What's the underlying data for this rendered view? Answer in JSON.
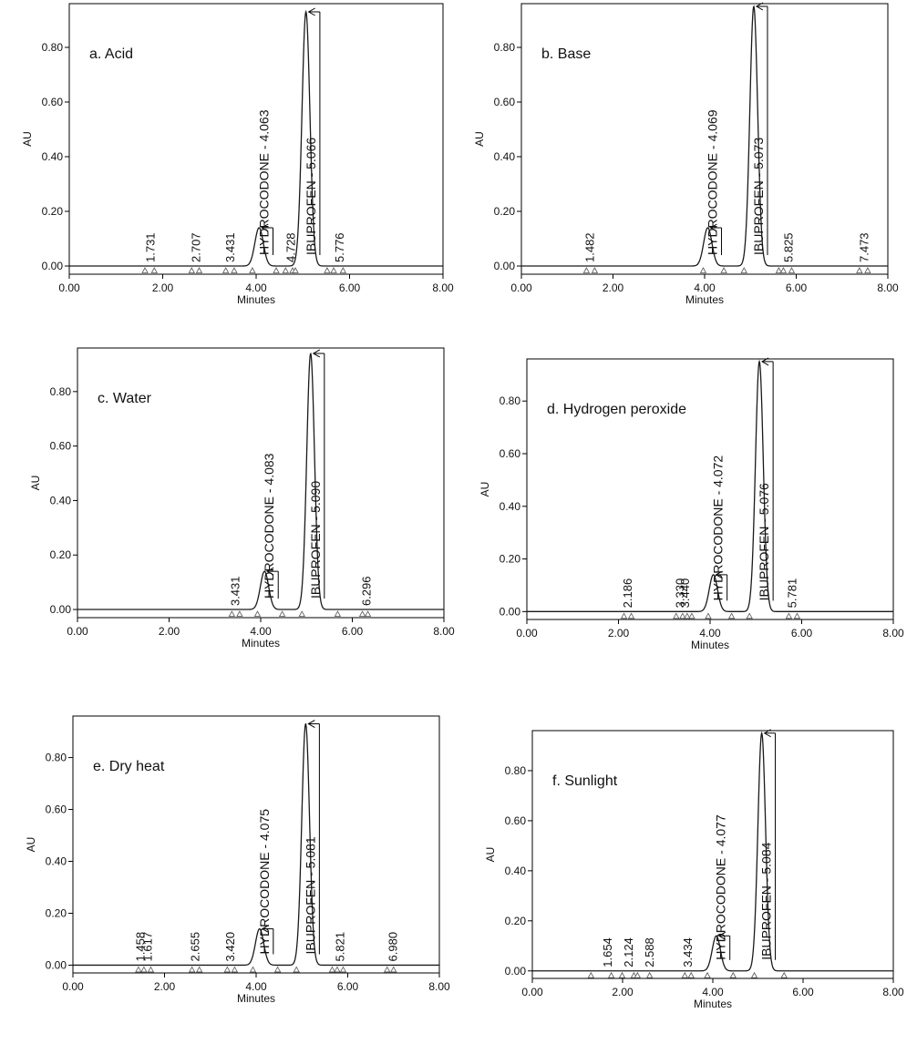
{
  "figure": {
    "description_title": ""
  },
  "colors": {
    "axis": "#000000",
    "trace": "#1a1a1a",
    "text": "#111111"
  },
  "chart_data": [
    {
      "type": "line",
      "title": "a. Acid",
      "xlabel": "Minutes",
      "ylabel": "AU",
      "xlim": [
        0,
        8
      ],
      "ylim": [
        -0.03,
        0.96
      ],
      "xticks": [
        "0.00",
        "2.00",
        "4.00",
        "6.00",
        "8.00"
      ],
      "yticks": [
        "0.00",
        "0.20",
        "0.40",
        "0.60",
        "0.80"
      ],
      "peaks": [
        {
          "rt": 4.063,
          "height": 0.14,
          "width": 0.09
        },
        {
          "rt": 5.066,
          "height": 0.93,
          "width": 0.085
        }
      ],
      "labels": [
        {
          "x": 1.731,
          "text": "1.731"
        },
        {
          "x": 2.707,
          "text": "2.707"
        },
        {
          "x": 3.431,
          "text": "3.431"
        },
        {
          "x": 4.063,
          "text": "HYDROCODONE - 4.063",
          "peak": true
        },
        {
          "x": 4.728,
          "text": "4.728"
        },
        {
          "x": 5.066,
          "text": "IBUPROFEN - 5.066",
          "peak": true
        },
        {
          "x": 5.776,
          "text": "5.776"
        }
      ],
      "markers": [
        1.62,
        1.82,
        2.62,
        2.78,
        3.35,
        3.53,
        3.92,
        4.43,
        4.63,
        4.78,
        4.84,
        5.52,
        5.66,
        5.86
      ]
    },
    {
      "type": "line",
      "title": "b. Base",
      "xlabel": "Minutes",
      "ylabel": "AU",
      "xlim": [
        0,
        8
      ],
      "ylim": [
        -0.03,
        0.96
      ],
      "xticks": [
        "0.00",
        "2.00",
        "4.00",
        "6.00",
        "8.00"
      ],
      "yticks": [
        "0.00",
        "0.20",
        "0.40",
        "0.60",
        "0.80"
      ],
      "peaks": [
        {
          "rt": 4.069,
          "height": 0.14,
          "width": 0.09
        },
        {
          "rt": 5.073,
          "height": 0.95,
          "width": 0.085
        }
      ],
      "labels": [
        {
          "x": 1.482,
          "text": "1.482"
        },
        {
          "x": 4.069,
          "text": "HYDROCODONE - 4.069",
          "peak": true
        },
        {
          "x": 5.073,
          "text": "IBUPROFEN - 5.073",
          "peak": true
        },
        {
          "x": 5.825,
          "text": "5.825"
        },
        {
          "x": 7.473,
          "text": "7.473"
        }
      ],
      "markers": [
        1.42,
        1.6,
        3.97,
        4.42,
        4.86,
        5.62,
        5.72,
        5.9,
        7.38,
        7.56
      ]
    },
    {
      "type": "line",
      "title": "c. Water",
      "xlabel": "Minutes",
      "ylabel": "AU",
      "xlim": [
        0,
        8
      ],
      "ylim": [
        -0.03,
        0.96
      ],
      "xticks": [
        "0.00",
        "2.00",
        "4.00",
        "6.00",
        "8.00"
      ],
      "yticks": [
        "0.00",
        "0.20",
        "0.40",
        "0.60",
        "0.80"
      ],
      "peaks": [
        {
          "rt": 4.083,
          "height": 0.14,
          "width": 0.09
        },
        {
          "rt": 5.09,
          "height": 0.94,
          "width": 0.085
        }
      ],
      "labels": [
        {
          "x": 3.431,
          "text": "3.431"
        },
        {
          "x": 4.083,
          "text": "HYDROCODONE - 4.083",
          "peak": true
        },
        {
          "x": 5.09,
          "text": "IBUPROFEN - 5.090",
          "peak": true
        },
        {
          "x": 6.296,
          "text": "6.296"
        }
      ],
      "markers": [
        3.37,
        3.54,
        3.93,
        4.47,
        4.9,
        5.68,
        6.22,
        6.34
      ]
    },
    {
      "type": "line",
      "title": "d. Hydrogen peroxide",
      "xlabel": "Minutes",
      "ylabel": "AU",
      "xlim": [
        0,
        8
      ],
      "ylim": [
        -0.03,
        0.96
      ],
      "xticks": [
        "0.00",
        "2.00",
        "4.00",
        "6.00",
        "8.00"
      ],
      "yticks": [
        "0.00",
        "0.20",
        "0.40",
        "0.60",
        "0.80"
      ],
      "peaks": [
        {
          "rt": 4.072,
          "height": 0.14,
          "width": 0.09
        },
        {
          "rt": 5.076,
          "height": 0.95,
          "width": 0.085
        }
      ],
      "labels": [
        {
          "x": 2.186,
          "text": "2.186"
        },
        {
          "x": 3.33,
          "text": "3.330"
        },
        {
          "x": 3.44,
          "text": "3.440"
        },
        {
          "x": 4.072,
          "text": "HYDROCODONE - 4.072",
          "peak": true
        },
        {
          "x": 5.076,
          "text": "IBUPROFEN - 5.076",
          "peak": true
        },
        {
          "x": 5.781,
          "text": "5.781"
        }
      ],
      "markers": [
        2.12,
        2.28,
        3.26,
        3.4,
        3.5,
        3.6,
        3.96,
        4.47,
        4.86,
        5.72,
        5.9
      ]
    },
    {
      "type": "line",
      "title": "e. Dry heat",
      "xlabel": "Minutes",
      "ylabel": "AU",
      "xlim": [
        0,
        8
      ],
      "ylim": [
        -0.03,
        0.96
      ],
      "xticks": [
        "0.00",
        "2.00",
        "4.00",
        "6.00",
        "8.00"
      ],
      "yticks": [
        "0.00",
        "0.20",
        "0.40",
        "0.60",
        "0.80"
      ],
      "peaks": [
        {
          "rt": 4.075,
          "height": 0.14,
          "width": 0.09
        },
        {
          "rt": 5.081,
          "height": 0.93,
          "width": 0.085
        }
      ],
      "labels": [
        {
          "x": 1.458,
          "text": "1.458"
        },
        {
          "x": 1.617,
          "text": "1.617"
        },
        {
          "x": 2.655,
          "text": "2.655"
        },
        {
          "x": 3.42,
          "text": "3.420"
        },
        {
          "x": 4.075,
          "text": "HYDROCODONE - 4.075",
          "peak": true
        },
        {
          "x": 5.081,
          "text": "IBUPROFEN - 5.081",
          "peak": true
        },
        {
          "x": 5.821,
          "text": "5.821"
        },
        {
          "x": 6.98,
          "text": "6.980"
        }
      ],
      "markers": [
        1.43,
        1.55,
        1.7,
        2.6,
        2.76,
        3.37,
        3.53,
        3.93,
        4.47,
        4.88,
        5.66,
        5.77,
        5.9,
        6.86,
        7.0
      ]
    },
    {
      "type": "line",
      "title": "f. Sunlight",
      "xlabel": "Minutes",
      "ylabel": "AU",
      "xlim": [
        0,
        8
      ],
      "ylim": [
        -0.03,
        0.96
      ],
      "xticks": [
        "0.00",
        "2.00",
        "4.00",
        "6.00",
        "8.00"
      ],
      "yticks": [
        "0.00",
        "0.20",
        "0.40",
        "0.60",
        "0.80"
      ],
      "peaks": [
        {
          "rt": 4.077,
          "height": 0.14,
          "width": 0.09
        },
        {
          "rt": 5.084,
          "height": 0.95,
          "width": 0.085
        }
      ],
      "labels": [
        {
          "x": 1.654,
          "text": "1.654"
        },
        {
          "x": 2.124,
          "text": "2.124"
        },
        {
          "x": 2.588,
          "text": "2.588"
        },
        {
          "x": 3.434,
          "text": "3.434"
        },
        {
          "x": 4.077,
          "text": "HYDROCODONE - 4.077",
          "peak": true
        },
        {
          "x": 5.084,
          "text": "IBUPROFEN - 5.084",
          "peak": true
        }
      ],
      "markers": [
        1.3,
        1.75,
        1.99,
        2.25,
        2.33,
        2.6,
        3.38,
        3.52,
        3.88,
        4.45,
        4.92,
        5.58
      ]
    }
  ]
}
